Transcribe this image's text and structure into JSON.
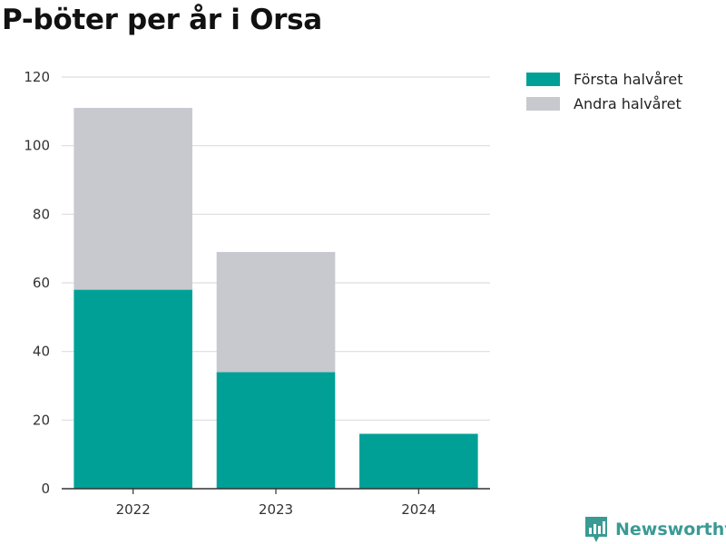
{
  "title": "P-böter per år i Orsa",
  "colors": {
    "forsta": "#00a096",
    "andra": "#c8c8cf",
    "grid": "#dddddd",
    "axis": "#333333",
    "brand": "#3a9a94"
  },
  "brand": {
    "name": "Newsworthy",
    "icon": "newsworthy-logo-icon"
  },
  "chart_data": {
    "type": "bar",
    "stacked": true,
    "title": "P-böter per år i Orsa",
    "xlabel": "",
    "ylabel": "",
    "categories": [
      "2022",
      "2023",
      "2024"
    ],
    "series": [
      {
        "name": "Första halvåret",
        "values": [
          58,
          34,
          16
        ],
        "color": "#00a096"
      },
      {
        "name": "Andra halvåret",
        "values": [
          53,
          35,
          0
        ],
        "color": "#c8c8cf"
      }
    ],
    "ylim": [
      0,
      120
    ],
    "yticks": [
      0,
      20,
      40,
      60,
      80,
      100,
      120
    ],
    "grid": true,
    "legend": "top-right"
  }
}
